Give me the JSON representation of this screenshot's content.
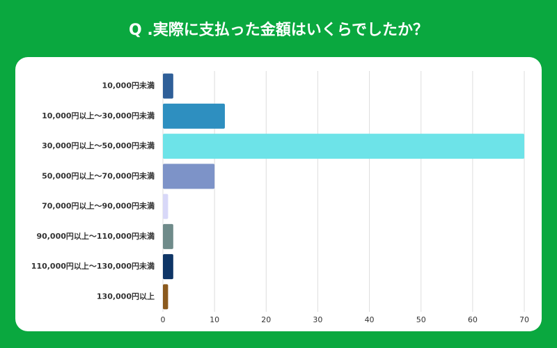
{
  "chart_data": {
    "type": "bar",
    "orientation": "horizontal",
    "title": "Q .実際に支払った金額はいくらでしたか？",
    "categories": [
      "10,000円未満",
      "10,000円以上～30,000円未満",
      "30,000円以上～50,000円未満",
      "50,000円以上～70,000円未満",
      "70,000円以上～90,000円未満",
      "90,000円以上～110,000円未満",
      "110,000円以上～130,000円未満",
      "130,000円以上"
    ],
    "values": [
      2,
      12,
      70,
      10,
      1,
      2,
      2,
      1
    ],
    "colors": [
      "#2f5f98",
      "#2e8fc0",
      "#6de3e8",
      "#7d93c8",
      "#d8d8f8",
      "#6f8b8a",
      "#0e3566",
      "#8b5a1e"
    ],
    "xlim": [
      0,
      70
    ],
    "xticks": [
      0,
      10,
      20,
      30,
      40,
      50,
      60,
      70
    ],
    "grid": true
  }
}
